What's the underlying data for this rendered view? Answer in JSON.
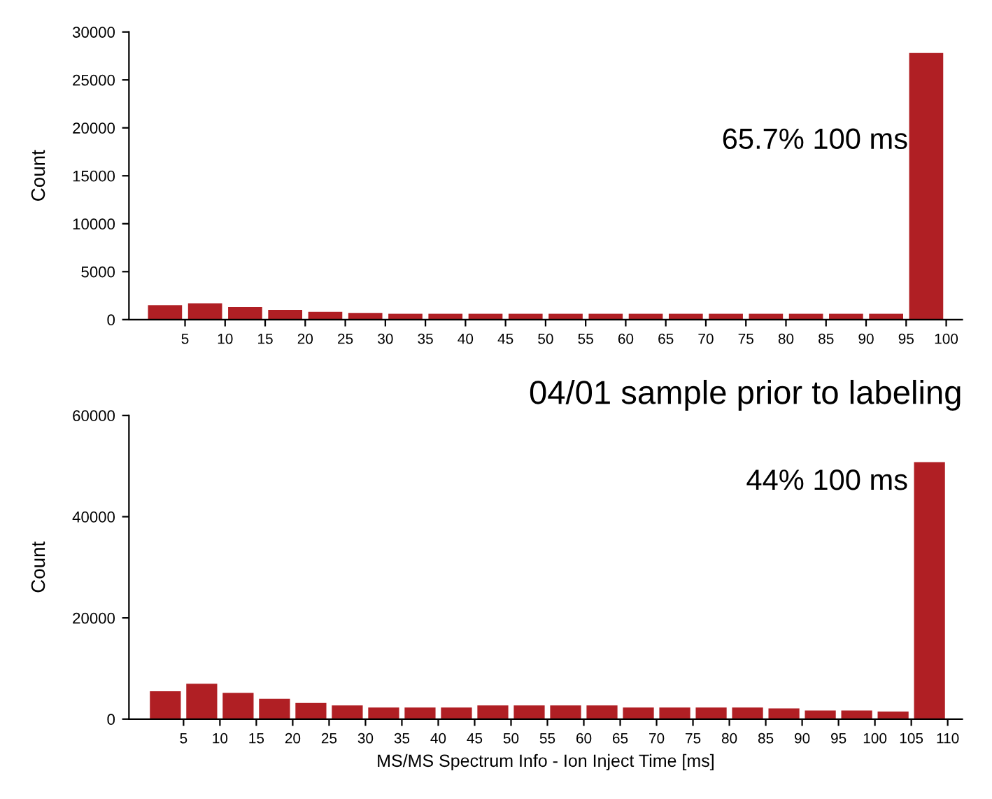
{
  "chart_data": [
    {
      "type": "histogram",
      "ylabel": "Count",
      "color": "#b01f24",
      "bins": [
        0,
        5,
        10,
        15,
        20,
        25,
        30,
        35,
        40,
        45,
        50,
        55,
        60,
        65,
        70,
        75,
        80,
        85,
        90,
        95,
        100
      ],
      "values": [
        1500,
        1700,
        1300,
        1000,
        800,
        700,
        600,
        600,
        600,
        600,
        600,
        600,
        600,
        600,
        600,
        600,
        600,
        600,
        600,
        27800
      ],
      "xlim": [
        -2,
        102
      ],
      "xticks": [
        5,
        10,
        15,
        20,
        25,
        30,
        35,
        40,
        45,
        50,
        55,
        60,
        65,
        70,
        75,
        80,
        85,
        90,
        95,
        100
      ],
      "ylim": [
        0,
        30000
      ],
      "yticks": [
        0,
        5000,
        10000,
        15000,
        20000,
        25000,
        30000
      ],
      "annotations": [
        "65.7% 100 ms"
      ]
    },
    {
      "type": "histogram",
      "title": "04/01 sample prior to labeling",
      "xlabel": "MS/MS Spectrum Info - Ion Inject Time [ms]",
      "ylabel": "Count",
      "color": "#b01f24",
      "bins": [
        0,
        5,
        10,
        15,
        20,
        25,
        30,
        35,
        40,
        45,
        50,
        55,
        60,
        65,
        70,
        75,
        80,
        85,
        90,
        95,
        100,
        105,
        110
      ],
      "values": [
        5500,
        7000,
        5200,
        4000,
        3200,
        2700,
        2300,
        2300,
        2300,
        2700,
        2700,
        2700,
        2700,
        2300,
        2300,
        2300,
        2300,
        2100,
        1700,
        1700,
        1500,
        50800
      ],
      "xlim": [
        -2.5,
        112
      ],
      "xticks": [
        5,
        10,
        15,
        20,
        25,
        30,
        35,
        40,
        45,
        50,
        55,
        60,
        65,
        70,
        75,
        80,
        85,
        90,
        95,
        100,
        105,
        110
      ],
      "ylim": [
        0,
        60000
      ],
      "yticks": [
        0,
        20000,
        40000,
        60000
      ],
      "annotations": [
        "44% 100 ms"
      ]
    }
  ]
}
